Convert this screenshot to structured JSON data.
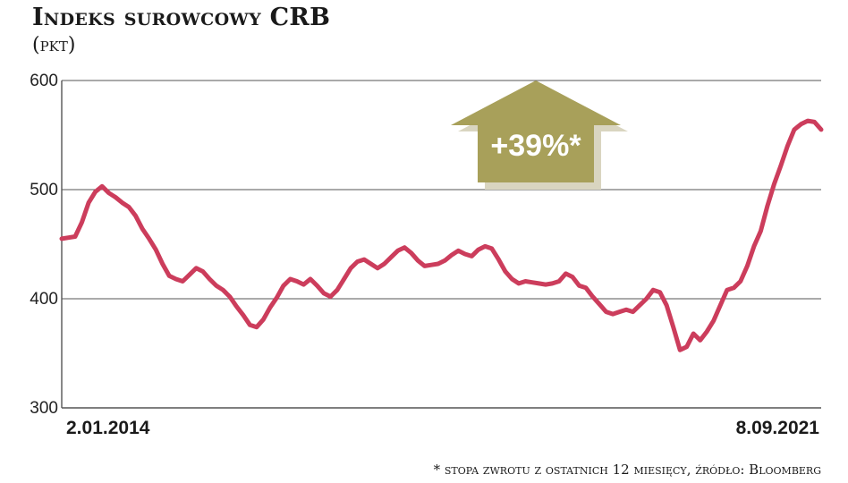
{
  "header": {
    "title": "Indeks surowcowy CRB",
    "unit": "(pkt)"
  },
  "annotation": {
    "label": "+39%*"
  },
  "footnote": "* stopa zwrotu z ostatnich 12 miesięcy, źródło: Bloomberg",
  "colors": {
    "line": "#cc3d5c",
    "badge": "#a8a05a",
    "grid": "#555555"
  },
  "chart_data": {
    "type": "line",
    "title": "Indeks surowcowy CRB",
    "ylabel": "(pkt)",
    "ylim": [
      300,
      600
    ],
    "yticks": [
      300,
      400,
      500,
      600
    ],
    "grid": true,
    "x_start_label": "2.01.2014",
    "x_end_label": "8.09.2021",
    "series": [
      {
        "values": [
          455,
          456,
          457,
          470,
          488,
          498,
          503,
          497,
          493,
          488,
          484,
          476,
          464,
          455,
          445,
          432,
          421,
          418,
          416,
          422,
          428,
          425,
          418,
          412,
          408,
          402,
          393,
          385,
          376,
          374,
          381,
          392,
          401,
          412,
          418,
          416,
          413,
          418,
          412,
          405,
          402,
          408,
          418,
          428,
          434,
          436,
          432,
          428,
          432,
          438,
          444,
          447,
          442,
          435,
          430,
          431,
          432,
          435,
          440,
          444,
          441,
          439,
          445,
          448,
          446,
          436,
          425,
          418,
          414,
          416,
          415,
          414,
          413,
          414,
          416,
          423,
          420,
          412,
          410,
          402,
          395,
          388,
          386,
          388,
          390,
          388,
          394,
          400,
          408,
          406,
          394,
          374,
          353,
          356,
          368,
          362,
          370,
          380,
          394,
          408,
          410,
          416,
          430,
          448,
          462,
          485,
          505,
          522,
          540,
          555,
          560,
          563,
          562,
          555
        ]
      }
    ]
  }
}
